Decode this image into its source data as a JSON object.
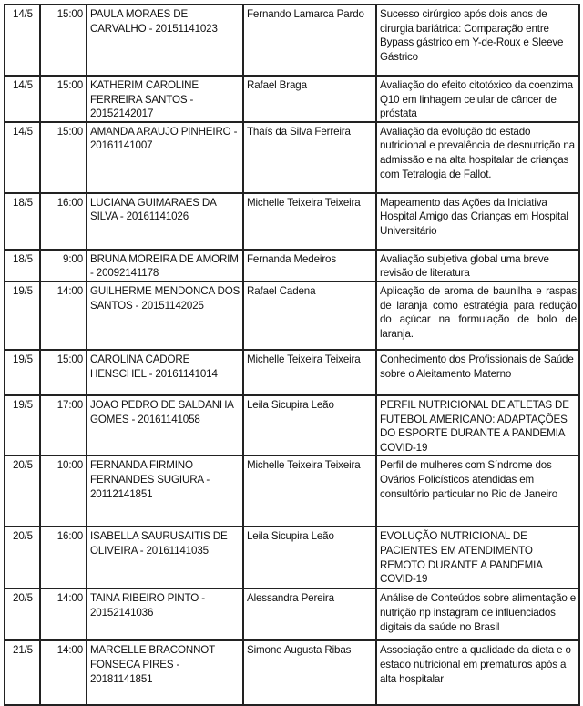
{
  "rows": [
    {
      "date": "14/5",
      "time": "15:00",
      "student": "PAULA MORAES DE CARVALHO - 20151141023",
      "advisor": "Fernando Lamarca Pardo",
      "title": "Sucesso cirúrgico após dois anos de cirurgia bariátrica: Comparação entre Bypass gástrico em Y-de-Roux e Sleeve Gástrico"
    },
    {
      "date": "14/5",
      "time": "15:00",
      "student": "KATHERIM CAROLINE FERREIRA SANTOS - 20152142017",
      "advisor": "Rafael Braga",
      "title": "Avaliação do efeito citotóxico da coenzima Q10 em linhagem celular de câncer de próstata"
    },
    {
      "date": "14/5",
      "time": "15:00",
      "student": "AMANDA ARAUJO PINHEIRO - 20161141007",
      "advisor": "Thaís da Silva Ferreira",
      "title": "Avaliação da evolução do estado nutricional e prevalência de desnutrição na admissão e na alta hospitalar de crianças com Tetralogia de Fallot."
    },
    {
      "date": "18/5",
      "time": "16:00",
      "student": "LUCIANA GUIMARAES DA SILVA - 20161141026",
      "advisor": "Michelle Teixeira Teixeira",
      "title": "Mapeamento das Ações da Iniciativa Hospital Amigo das Crianças em Hospital Universitário"
    },
    {
      "date": "18/5",
      "time": "9:00",
      "student": "BRUNA MOREIRA DE AMORIM - 20092141178",
      "advisor": "Fernanda Medeiros",
      "title": "Avaliação subjetiva global uma breve revisão de literatura"
    },
    {
      "date": "19/5",
      "time": "14:00",
      "student": "GUILHERME MENDONCA DOS SANTOS - 20151142025",
      "advisor": "Rafael Cadena",
      "title": "Aplicação de aroma de baunilha e raspas de laranja como estratégia para redução do açúcar na formulação de bolo de laranja."
    },
    {
      "date": "19/5",
      "time": "15:00",
      "student": "CAROLINA CADORE HENSCHEL - 20161141014",
      "advisor": "Michelle Teixeira Teixeira",
      "title": "Conhecimento dos Profissionais de Saúde sobre o Aleitamento Materno"
    },
    {
      "date": "19/5",
      "time": "17:00",
      "student": "JOAO PEDRO DE SALDANHA GOMES - 20161141058",
      "advisor": "Leila Sicupira Leão",
      "title": "PERFIL NUTRICIONAL DE ATLETAS DE FUTEBOL AMERICANO: ADAPTAÇÕES DO ESPORTE DURANTE A PANDEMIA COVID-19"
    },
    {
      "date": "20/5",
      "time": "10:00",
      "student": "FERNANDA FIRMINO FERNANDES SUGIURA - 20112141851",
      "advisor": "Michelle Teixeira Teixeira",
      "title": "Perfil de mulheres com Síndrome dos Ovários Policísticos atendidas em consultório particular no Rio de Janeiro"
    },
    {
      "date": "20/5",
      "time": "16:00",
      "student": "ISABELLA SAURUSAITIS DE OLIVEIRA - 20161141035",
      "advisor": "Leila Sicupira  Leão",
      "title": "EVOLUÇÃO NUTRICIONAL DE PACIENTES EM ATENDIMENTO REMOTO DURANTE A PANDEMIA COVID-19"
    },
    {
      "date": "20/5",
      "time": "14:00",
      "student": "TAINA RIBEIRO PINTO - 20152141036",
      "advisor": "Alessandra Pereira",
      "title": "Análise de Conteúdos sobre alimentação e nutrição np instagram de influenciados digitais da saúde no Brasil"
    },
    {
      "date": "21/5",
      "time": "14:00",
      "student": "MARCELLE BRACONNOT FONSECA PIRES - 20181141851",
      "advisor": "Simone Augusta Ribas",
      "title": "Associação entre a qualidade da dieta e o estado nutricional em prematuros após a alta hospitalar"
    }
  ]
}
